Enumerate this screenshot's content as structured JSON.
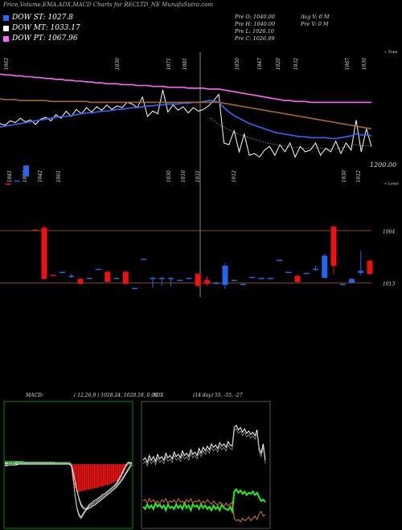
{
  "header": {
    "title": "Price,Volume,EMA,ADX,MACD Charts for RECLTD_NE MunafaSutra.com"
  },
  "legend": [
    {
      "label": "DOW ST: 1027.8",
      "color": "#3366ff"
    },
    {
      "label": "DOW MT: 1033.17",
      "color": "#ffffff"
    },
    {
      "label": "DOW PT: 1067.96",
      "color": "#ff66ff"
    }
  ],
  "info": {
    "prev_open": "Pre   O: 1040.00",
    "prev_high": "Pre   H: 1040.00",
    "prev_low": "Pre   L: 1026.10",
    "prev_close": "Pre   C: 1026.99",
    "avg_vol": "Avg V: 0   M",
    "prev_vol": "Pre   V: 0   M"
  },
  "chart_data": [
    {
      "type": "line",
      "name": "price-ema",
      "labels": {
        "top_right": "« Tops",
        "bottom_right": "« Lows",
        "level": "1200.00"
      },
      "top_labels": [
        "1063",
        "1030",
        "1071",
        "1081",
        "1050",
        "1047",
        "1020",
        "1032",
        "1067",
        "1030"
      ],
      "low_labels": [
        "1041",
        "1034",
        "1042",
        "1061",
        "1030",
        "1016",
        "1031",
        "1012",
        "1030",
        "1012"
      ],
      "series": [
        {
          "color": "#ffffff",
          "values": [
            1042,
            1040,
            1045,
            1043,
            1048,
            1044,
            1046,
            1041,
            1047,
            1049,
            1045,
            1052,
            1048,
            1056,
            1050,
            1058,
            1053,
            1060,
            1055,
            1061,
            1057,
            1063,
            1058,
            1062,
            1060,
            1066,
            1064,
            1060,
            1072,
            1050,
            1056,
            1053,
            1080,
            1055,
            1063,
            1057,
            1061,
            1054,
            1060,
            1056,
            1058,
            1062,
            1068,
            1075,
            1020,
            1018,
            1034,
            1010,
            1030,
            1006,
            1008,
            1004,
            1012,
            1016,
            1006,
            1018,
            1010,
            1020,
            1004,
            1016,
            1010,
            1012,
            1020,
            1006,
            1014,
            1010,
            1022,
            1008,
            1020,
            1012,
            1046,
            1010,
            1036,
            1016
          ]
        },
        {
          "color": "#3366ff",
          "values": [
            1038,
            1039,
            1040,
            1041,
            1042,
            1043,
            1044,
            1045,
            1046,
            1047,
            1048,
            1049,
            1050,
            1050,
            1051,
            1052,
            1053,
            1054,
            1054,
            1055,
            1056,
            1056,
            1057,
            1058,
            1058,
            1059,
            1060,
            1060,
            1061,
            1062,
            1062,
            1063,
            1063,
            1064,
            1064,
            1064,
            1065,
            1065,
            1066,
            1066,
            1067,
            1068,
            1068,
            1066,
            1060,
            1055,
            1051,
            1048,
            1045,
            1042,
            1040,
            1038,
            1036,
            1034,
            1032,
            1031,
            1030,
            1029,
            1028,
            1027,
            1027,
            1026,
            1026,
            1026,
            1026,
            1025,
            1025,
            1026,
            1027,
            1028,
            1030,
            1029,
            1029,
            1028
          ]
        },
        {
          "color": "#ff66ff",
          "values": [
            1098,
            1097,
            1097,
            1096,
            1096,
            1095,
            1095,
            1094,
            1094,
            1093,
            1093,
            1092,
            1092,
            1091,
            1091,
            1090,
            1090,
            1089,
            1089,
            1088,
            1088,
            1087,
            1087,
            1087,
            1086,
            1086,
            1086,
            1085,
            1085,
            1085,
            1084,
            1084,
            1084,
            1083,
            1083,
            1083,
            1083,
            1082,
            1082,
            1082,
            1082,
            1081,
            1081,
            1081,
            1080,
            1079,
            1078,
            1077,
            1076,
            1075,
            1074,
            1073,
            1072,
            1071,
            1070,
            1069,
            1068,
            1068,
            1067,
            1067,
            1067,
            1066,
            1066,
            1066,
            1066,
            1066,
            1066,
            1066,
            1066,
            1066,
            1066,
            1066,
            1066,
            1066
          ]
        },
        {
          "color": "#aa6622",
          "values": [
            1070,
            1069,
            1069,
            1069,
            1068,
            1068,
            1068,
            1068,
            1068,
            1068,
            1067,
            1067,
            1067,
            1067,
            1067,
            1067,
            1067,
            1067,
            1066,
            1066,
            1066,
            1066,
            1066,
            1066,
            1066,
            1066,
            1066,
            1066,
            1066,
            1066,
            1066,
            1066,
            1066,
            1066,
            1066,
            1066,
            1066,
            1066,
            1066,
            1066,
            1066,
            1066,
            1066,
            1066,
            1065,
            1064,
            1063,
            1062,
            1061,
            1060,
            1059,
            1058,
            1057,
            1056,
            1055,
            1054,
            1053,
            1052,
            1051,
            1050,
            1049,
            1048,
            1047,
            1046,
            1045,
            1044,
            1043,
            1042,
            1041,
            1040,
            1039,
            1038,
            1037,
            1036
          ]
        }
      ]
    },
    {
      "type": "bar",
      "name": "candles",
      "levels": [
        "1064",
        "1013"
      ],
      "candles": [
        {
          "o": 1112,
          "c": 1111,
          "h": 1112,
          "l": 1111
        },
        {
          "o": 1114,
          "c": 1115,
          "h": 1115,
          "l": 1114
        },
        {
          "o": 1119,
          "c": 1130,
          "h": 1130,
          "l": 1119
        },
        {
          "o": 1066,
          "c": 1065,
          "h": 1066,
          "l": 1065
        },
        {
          "o": 1068,
          "c": 1017,
          "h": 1069,
          "l": 1016
        },
        {
          "o": 1021,
          "c": 1020,
          "h": 1021,
          "l": 1020
        },
        {
          "o": 1023,
          "c": 1024,
          "h": 1024,
          "l": 1023
        },
        {
          "o": 1020,
          "c": 1020,
          "h": 1022,
          "l": 1018
        },
        {
          "o": 1017,
          "c": 1012,
          "h": 1018,
          "l": 1011
        },
        {
          "o": 1018,
          "c": 1018,
          "h": 1018,
          "l": 1018
        },
        {
          "o": 1027,
          "c": 1027,
          "h": 1027,
          "l": 1027
        },
        {
          "o": 1024,
          "c": 1014,
          "h": 1025,
          "l": 1014
        },
        {
          "o": 1017,
          "c": 1018,
          "h": 1018,
          "l": 1017
        },
        {
          "o": 1024,
          "c": 1012,
          "h": 1025,
          "l": 1011
        },
        {
          "o": 1008,
          "c": 1008,
          "h": 1008,
          "l": 1008
        },
        {
          "o": 1037,
          "c": 1037,
          "h": 1037,
          "l": 1037
        },
        {
          "o": 1017,
          "c": 1018,
          "h": 1019,
          "l": 1008
        },
        {
          "o": 1017,
          "c": 1018,
          "h": 1019,
          "l": 1010
        },
        {
          "o": 1018,
          "c": 1018,
          "h": 1018,
          "l": 1010
        },
        {
          "o": 1016,
          "c": 1016,
          "h": 1016,
          "l": 1016
        },
        {
          "o": 1018,
          "c": 1018,
          "h": 1018,
          "l": 1018
        },
        {
          "o": 1022,
          "c": 1010,
          "h": 1023,
          "l": 1009
        },
        {
          "o": 1016,
          "c": 1012,
          "h": 1020,
          "l": 1010
        },
        {
          "o": 1013,
          "c": 1013,
          "h": 1014,
          "l": 1013
        },
        {
          "o": 1011,
          "c": 1030,
          "h": 1033,
          "l": 1007
        },
        {
          "o": 1016,
          "c": 1016,
          "h": 1016,
          "l": 1016
        },
        {
          "o": 1012,
          "c": 1012,
          "h": 1012,
          "l": 1012
        },
        {
          "o": 1019,
          "c": 1019,
          "h": 1019,
          "l": 1019
        },
        {
          "o": 1018,
          "c": 1018,
          "h": 1018,
          "l": 1018
        },
        {
          "o": 1018,
          "c": 1018,
          "h": 1018,
          "l": 1018
        },
        {
          "o": 1036,
          "c": 1036,
          "h": 1036,
          "l": 1036
        },
        {
          "o": 1024,
          "c": 1024,
          "h": 1024,
          "l": 1024
        },
        {
          "o": 1020,
          "c": 1014,
          "h": 1021,
          "l": 1013
        },
        {
          "o": 1023,
          "c": 1023,
          "h": 1023,
          "l": 1023
        },
        {
          "o": 1027,
          "c": 1027,
          "h": 1030,
          "l": 1025
        },
        {
          "o": 1018,
          "c": 1040,
          "h": 1042,
          "l": 1018
        },
        {
          "o": 1069,
          "c": 1030,
          "h": 1071,
          "l": 1022
        },
        {
          "o": 1012,
          "c": 1012,
          "h": 1012,
          "l": 1012
        },
        {
          "o": 1013,
          "c": 1017,
          "h": 1017,
          "l": 1013
        },
        {
          "o": 1023,
          "c": 1025,
          "h": 1045,
          "l": 1021
        },
        {
          "o": 1035,
          "c": 1022,
          "h": 1036,
          "l": 1021
        }
      ]
    },
    {
      "type": "area",
      "name": "macd",
      "title": "MACD:",
      "params": "( 12,26,9 ) 1028.24,  1028.18,  0.06",
      "histogram": [
        4,
        4,
        4,
        4,
        4,
        4,
        4,
        4,
        4,
        4,
        3,
        3,
        3,
        3,
        3,
        3,
        3,
        3,
        3,
        3,
        3,
        3,
        3,
        3,
        3,
        3,
        2,
        2,
        2,
        2,
        2,
        2,
        2,
        2,
        -1,
        -20,
        -30,
        -34,
        -35,
        -34,
        -33,
        -33,
        -32,
        -32,
        -31,
        -31,
        -30,
        -30,
        -29,
        -28,
        -28,
        -27,
        -26,
        -26,
        -25,
        -24,
        -23,
        -22,
        -21,
        -19,
        -16,
        -12,
        -7,
        -2,
        3,
        2
      ],
      "macd_line": [
        1,
        1,
        1,
        1,
        1,
        1,
        2,
        2,
        2,
        2,
        2,
        2,
        2,
        2,
        2,
        2,
        2,
        2,
        2,
        2,
        2,
        2,
        2,
        2,
        2,
        2,
        2,
        2,
        2,
        2,
        2,
        2,
        2,
        2,
        0,
        -18,
        -40,
        -55,
        -63,
        -66,
        -62,
        -58,
        -55,
        -51,
        -49,
        -47,
        -45,
        -44,
        -42,
        -40,
        -38,
        -37,
        -35,
        -33,
        -31,
        -29,
        -27,
        -24,
        -20,
        -16,
        -11,
        -6,
        -1,
        2,
        2,
        2
      ],
      "signal_line": [
        -2,
        -2,
        -1,
        -1,
        -1,
        -1,
        -1,
        0,
        0,
        0,
        0,
        0,
        0,
        0,
        0,
        0,
        0,
        0,
        0,
        0,
        0,
        0,
        0,
        0,
        0,
        0,
        0,
        0,
        0,
        0,
        0,
        0,
        0,
        0,
        -2,
        -10,
        -22,
        -34,
        -44,
        -51,
        -55,
        -56,
        -56,
        -55,
        -54,
        -52,
        -51,
        -49,
        -47,
        -45,
        -43,
        -41,
        -39,
        -37,
        -35,
        -33,
        -31,
        -29,
        -26,
        -23,
        -20,
        -16,
        -12,
        -8,
        -4,
        -1
      ]
    },
    {
      "type": "line",
      "name": "adx",
      "title": "ADX",
      "params": "(14 day) 55,  -55,  -27",
      "series": [
        {
          "color": "#ffffff",
          "values": [
            60,
            62,
            58,
            64,
            60,
            63,
            59,
            65,
            61,
            63,
            60,
            66,
            62,
            64,
            61,
            67,
            63,
            65,
            62,
            68,
            64,
            66,
            63,
            69,
            65,
            67,
            64,
            70,
            66,
            71,
            68,
            72,
            69,
            74,
            71,
            73,
            70,
            75,
            72,
            74,
            71,
            76,
            73,
            72,
            88,
            90,
            86,
            88,
            84,
            87,
            83,
            85,
            82,
            84,
            81,
            86,
            70,
            66,
            74,
            60
          ]
        },
        {
          "color": "#22ee22",
          "values": [
            20,
            18,
            22,
            19,
            21,
            18,
            23,
            20,
            22,
            19,
            21,
            17,
            22,
            19,
            20,
            18,
            22,
            19,
            21,
            18,
            23,
            19,
            21,
            17,
            22,
            20,
            21,
            18,
            22,
            19,
            21,
            18,
            20,
            17,
            21,
            18,
            20,
            17,
            22,
            19,
            18,
            17,
            20,
            16,
            33,
            35,
            32,
            34,
            31,
            33,
            30,
            32,
            31,
            33,
            30,
            32,
            28,
            25,
            26,
            24
          ]
        },
        {
          "color": "#dd7722",
          "values": [
            25,
            26,
            23,
            27,
            24,
            26,
            23,
            25,
            22,
            26,
            24,
            27,
            23,
            25,
            24,
            26,
            23,
            27,
            24,
            25,
            22,
            26,
            24,
            27,
            23,
            25,
            24,
            26,
            22,
            25,
            23,
            26,
            24,
            22,
            25,
            23,
            21,
            24,
            22,
            20,
            23,
            21,
            22,
            24,
            10,
            8,
            9,
            7,
            10,
            8,
            9,
            11,
            8,
            10,
            12,
            9,
            14,
            16,
            12,
            13
          ]
        }
      ]
    }
  ]
}
